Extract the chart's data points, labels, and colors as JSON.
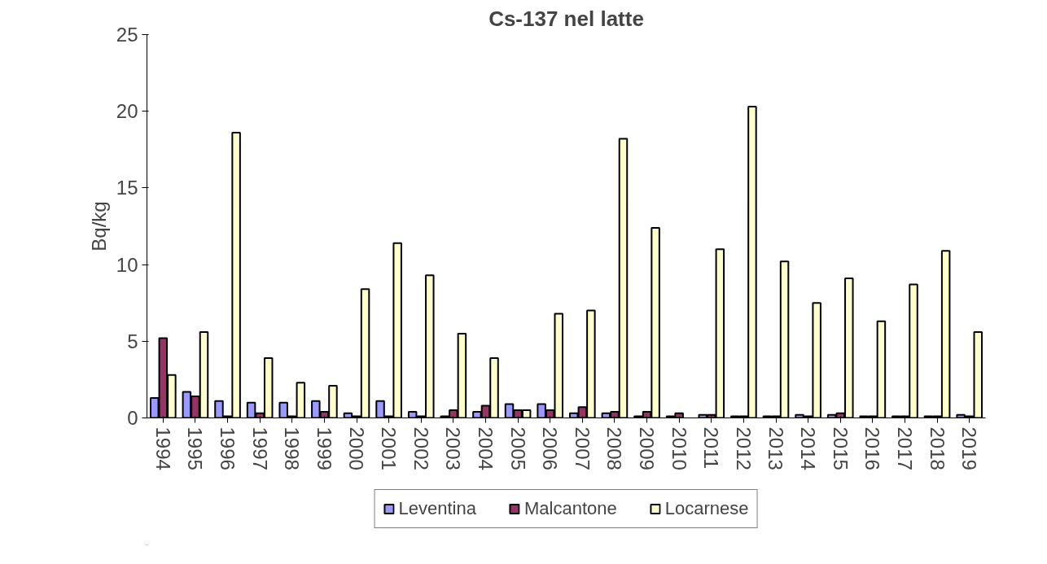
{
  "chart_data": {
    "type": "bar",
    "title": "Cs-137 nel latte",
    "ylabel": "Bq/kg",
    "categories": [
      "1994",
      "1995",
      "1996",
      "1997",
      "1998",
      "1999",
      "2000",
      "2001",
      "2002",
      "2003",
      "2004",
      "2005",
      "2006",
      "2007",
      "2008",
      "2009",
      "2010",
      "2011",
      "2012",
      "2013",
      "2014",
      "2015",
      "2016",
      "2017",
      "2018",
      "2019"
    ],
    "series": [
      {
        "name": "Leventina",
        "color": "#9999ff",
        "values": [
          1.3,
          1.7,
          1.1,
          1.0,
          1.0,
          1.1,
          0.3,
          1.1,
          0.4,
          0.1,
          0.4,
          0.9,
          0.9,
          0.3,
          0.3,
          0.1,
          0.1,
          0.2,
          0.1,
          0.1,
          0.2,
          0.2,
          0.1,
          0.1,
          0.1,
          0.2
        ]
      },
      {
        "name": "Malcantone",
        "color": "#993366",
        "values": [
          5.2,
          1.4,
          0.1,
          0.3,
          0.1,
          0.4,
          0.1,
          0.1,
          0.1,
          0.5,
          0.8,
          0.5,
          0.5,
          0.7,
          0.4,
          0.4,
          0.3,
          0.2,
          0.1,
          0.1,
          0.1,
          0.3,
          0.1,
          0.1,
          0.1,
          0.1
        ]
      },
      {
        "name": "Locarnese",
        "color": "#ffffcc",
        "values": [
          2.8,
          5.6,
          18.6,
          3.9,
          2.3,
          2.1,
          8.4,
          11.4,
          9.3,
          5.5,
          3.9,
          0.5,
          6.8,
          7.0,
          18.2,
          12.4,
          null,
          11.0,
          20.3,
          10.2,
          7.5,
          9.1,
          6.3,
          8.7,
          10.9,
          5.6
        ]
      }
    ],
    "ylim": [
      0,
      25
    ],
    "yticks": [
      0,
      5,
      10,
      15,
      20,
      25
    ],
    "grid": false,
    "legend": "bottom"
  }
}
